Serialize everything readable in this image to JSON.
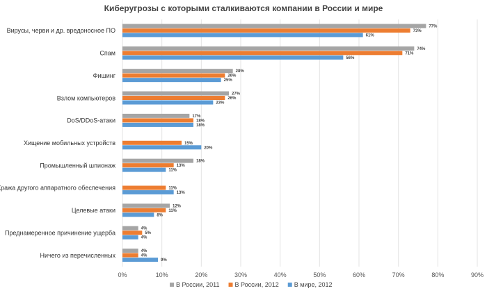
{
  "chart_data": {
    "type": "bar",
    "title": "Киберугрозы с которыми сталкиваются компании в России и мире",
    "xlabel": "",
    "ylabel": "",
    "xlim": [
      0,
      90
    ],
    "xticks": [
      "0%",
      "10%",
      "20%",
      "30%",
      "40%",
      "50%",
      "60%",
      "70%",
      "80%",
      "90%"
    ],
    "grid": true,
    "legend_position": "bottom",
    "categories": [
      "Вирусы, черви и др. вредоносное ПО",
      "Спам",
      "Фишинг",
      "Взлом компьютеров",
      "DoS/DDoS-атаки",
      "Хищение мобильных устройств",
      "Промышленный шпионаж",
      "Кража другого аппаратного обеспечения",
      "Целевые атаки",
      "Преднамеренное причинение ущерба",
      "Ничего из перечисленных"
    ],
    "series": [
      {
        "name": "В России, 2011",
        "color": "#a5a5a5",
        "values": [
          77,
          74,
          28,
          27,
          17,
          null,
          18,
          null,
          12,
          4,
          4
        ]
      },
      {
        "name": "В России, 2012",
        "color": "#ed7d31",
        "values": [
          73,
          71,
          26,
          26,
          18,
          15,
          13,
          11,
          11,
          5,
          4
        ]
      },
      {
        "name": "В мире, 2012",
        "color": "#5b9bd5",
        "values": [
          61,
          56,
          25,
          23,
          18,
          20,
          11,
          13,
          8,
          4,
          9
        ]
      }
    ]
  }
}
